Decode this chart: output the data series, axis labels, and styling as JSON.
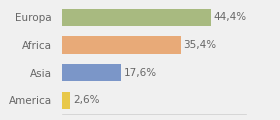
{
  "categories": [
    "America",
    "Asia",
    "Africa",
    "Europa"
  ],
  "values": [
    2.6,
    17.6,
    35.4,
    44.4
  ],
  "labels": [
    "2,6%",
    "17,6%",
    "35,4%",
    "44,4%"
  ],
  "bar_colors": [
    "#e8c84a",
    "#7b96c8",
    "#e8aa78",
    "#a8ba80"
  ],
  "background_color": "#f0f0f0",
  "xlim": [
    0,
    55
  ],
  "bar_height": 0.62,
  "label_fontsize": 7.5,
  "tick_fontsize": 7.5,
  "label_color": "#666666",
  "tick_color": "#666666"
}
